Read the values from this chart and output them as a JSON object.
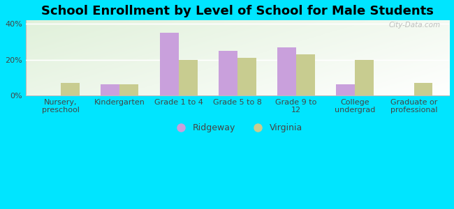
{
  "title": "School Enrollment by Level of School for Male Students",
  "categories": [
    "Nursery,\npreschool",
    "Kindergarten",
    "Grade 1 to 4",
    "Grade 5 to 8",
    "Grade 9 to\n12",
    "College\nundergrad",
    "Graduate or\nprofessional"
  ],
  "ridgeway": [
    0,
    6,
    35,
    25,
    27,
    6,
    0
  ],
  "virginia": [
    7,
    6,
    20,
    21,
    23,
    20,
    7
  ],
  "ridgeway_color": "#c9a0dc",
  "virginia_color": "#c8cc90",
  "background_color": "#00e5ff",
  "ylim": [
    0,
    42
  ],
  "yticks": [
    0,
    20,
    40
  ],
  "ytick_labels": [
    "0%",
    "20%",
    "40%"
  ],
  "bar_width": 0.32,
  "legend_labels": [
    "Ridgeway",
    "Virginia"
  ],
  "watermark": "City-Data.com",
  "title_fontsize": 13,
  "tick_fontsize": 8,
  "legend_fontsize": 9
}
